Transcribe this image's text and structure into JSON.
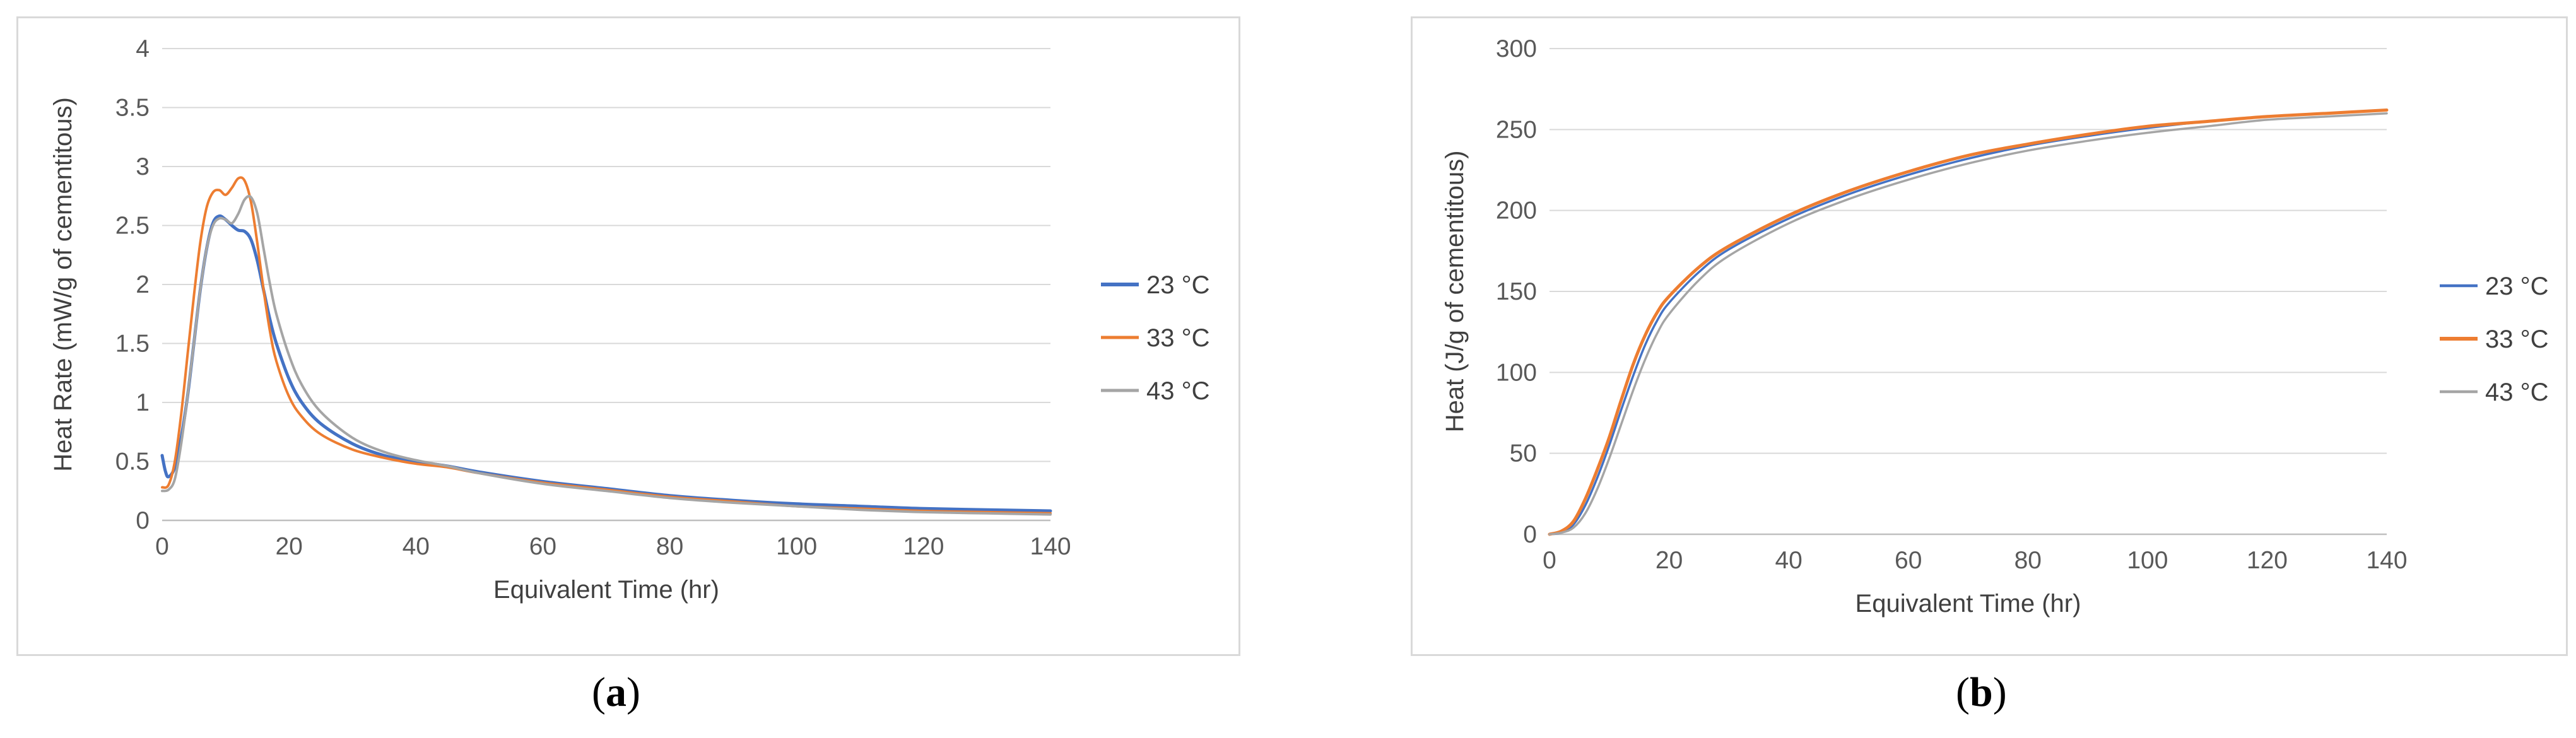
{
  "captions": [
    "(a)",
    "(b)"
  ],
  "chart_data": [
    {
      "type": "line",
      "title": "",
      "xlabel": "Equivalent Time (hr)",
      "ylabel": "Heat Rate (mW/g of cementitous)",
      "xlim": [
        0,
        140
      ],
      "ylim": [
        0,
        4
      ],
      "xticks": [
        0,
        20,
        40,
        60,
        80,
        100,
        120,
        140
      ],
      "yticks": [
        0,
        0.5,
        1,
        1.5,
        2,
        2.5,
        3,
        3.5,
        4
      ],
      "ytick_labels": [
        "0",
        "0.5",
        "1",
        "1.5",
        "2",
        "2.5",
        "3",
        "3.5",
        "4"
      ],
      "grid": "horizontal",
      "legend_position": "right",
      "series": [
        {
          "name": "23 °C",
          "color": "#4472c4",
          "points": [
            [
              0,
              0.55
            ],
            [
              0.5,
              0.42
            ],
            [
              1,
              0.37
            ],
            [
              2,
              0.45
            ],
            [
              3,
              0.7
            ],
            [
              4,
              1.05
            ],
            [
              5,
              1.5
            ],
            [
              6,
              1.95
            ],
            [
              7,
              2.3
            ],
            [
              8,
              2.52
            ],
            [
              9,
              2.58
            ],
            [
              10,
              2.55
            ],
            [
              11,
              2.5
            ],
            [
              12,
              2.46
            ],
            [
              13,
              2.45
            ],
            [
              14,
              2.38
            ],
            [
              15,
              2.2
            ],
            [
              16,
              1.95
            ],
            [
              17,
              1.7
            ],
            [
              18,
              1.5
            ],
            [
              20,
              1.2
            ],
            [
              22,
              1.0
            ],
            [
              25,
              0.82
            ],
            [
              30,
              0.65
            ],
            [
              35,
              0.55
            ],
            [
              40,
              0.5
            ],
            [
              45,
              0.46
            ],
            [
              50,
              0.41
            ],
            [
              60,
              0.33
            ],
            [
              70,
              0.27
            ],
            [
              80,
              0.21
            ],
            [
              90,
              0.17
            ],
            [
              100,
              0.14
            ],
            [
              110,
              0.12
            ],
            [
              120,
              0.1
            ],
            [
              130,
              0.09
            ],
            [
              140,
              0.08
            ]
          ]
        },
        {
          "name": "33 °C",
          "color": "#ed7d31",
          "points": [
            [
              0,
              0.28
            ],
            [
              1,
              0.3
            ],
            [
              2,
              0.5
            ],
            [
              3,
              0.9
            ],
            [
              4,
              1.4
            ],
            [
              5,
              1.9
            ],
            [
              6,
              2.35
            ],
            [
              7,
              2.65
            ],
            [
              8,
              2.78
            ],
            [
              9,
              2.8
            ],
            [
              10,
              2.76
            ],
            [
              11,
              2.82
            ],
            [
              12,
              2.9
            ],
            [
              13,
              2.88
            ],
            [
              14,
              2.7
            ],
            [
              15,
              2.35
            ],
            [
              16,
              1.95
            ],
            [
              17,
              1.6
            ],
            [
              18,
              1.35
            ],
            [
              20,
              1.05
            ],
            [
              22,
              0.88
            ],
            [
              25,
              0.73
            ],
            [
              30,
              0.6
            ],
            [
              35,
              0.53
            ],
            [
              40,
              0.48
            ],
            [
              45,
              0.45
            ],
            [
              50,
              0.4
            ],
            [
              60,
              0.32
            ],
            [
              70,
              0.26
            ],
            [
              80,
              0.2
            ],
            [
              90,
              0.16
            ],
            [
              100,
              0.12
            ],
            [
              110,
              0.1
            ],
            [
              120,
              0.08
            ],
            [
              130,
              0.07
            ],
            [
              140,
              0.06
            ]
          ]
        },
        {
          "name": "43 °C",
          "color": "#a5a5a5",
          "points": [
            [
              0,
              0.25
            ],
            [
              1,
              0.26
            ],
            [
              2,
              0.35
            ],
            [
              3,
              0.65
            ],
            [
              4,
              1.05
            ],
            [
              5,
              1.5
            ],
            [
              6,
              1.95
            ],
            [
              7,
              2.3
            ],
            [
              8,
              2.5
            ],
            [
              9,
              2.56
            ],
            [
              10,
              2.55
            ],
            [
              11,
              2.52
            ],
            [
              12,
              2.6
            ],
            [
              13,
              2.72
            ],
            [
              14,
              2.74
            ],
            [
              15,
              2.6
            ],
            [
              16,
              2.3
            ],
            [
              17,
              2.0
            ],
            [
              18,
              1.75
            ],
            [
              20,
              1.4
            ],
            [
              22,
              1.15
            ],
            [
              25,
              0.92
            ],
            [
              30,
              0.7
            ],
            [
              35,
              0.58
            ],
            [
              40,
              0.51
            ],
            [
              45,
              0.46
            ],
            [
              50,
              0.4
            ],
            [
              60,
              0.31
            ],
            [
              70,
              0.25
            ],
            [
              80,
              0.19
            ],
            [
              90,
              0.15
            ],
            [
              100,
              0.12
            ],
            [
              110,
              0.09
            ],
            [
              120,
              0.07
            ],
            [
              130,
              0.06
            ],
            [
              140,
              0.05
            ]
          ]
        }
      ]
    },
    {
      "type": "line",
      "title": "",
      "xlabel": "Equivalent Time (hr)",
      "ylabel": "Heat (J/g of cementitous)",
      "xlim": [
        0,
        140
      ],
      "ylim": [
        0,
        300
      ],
      "xticks": [
        0,
        20,
        40,
        60,
        80,
        100,
        120,
        140
      ],
      "yticks": [
        0,
        50,
        100,
        150,
        200,
        250,
        300
      ],
      "ytick_labels": [
        "0",
        "50",
        "100",
        "150",
        "200",
        "250",
        "300"
      ],
      "grid": "horizontal",
      "legend_position": "right",
      "series": [
        {
          "name": "23 °C",
          "color": "#4472c4",
          "points": [
            [
              0,
              0
            ],
            [
              2,
              1
            ],
            [
              4,
              6
            ],
            [
              6,
              18
            ],
            [
              8,
              35
            ],
            [
              10,
              55
            ],
            [
              12,
              77
            ],
            [
              14,
              98
            ],
            [
              16,
              117
            ],
            [
              18,
              132
            ],
            [
              20,
              143
            ],
            [
              25,
              162
            ],
            [
              30,
              176
            ],
            [
              40,
              195
            ],
            [
              50,
              210
            ],
            [
              60,
              222
            ],
            [
              70,
              232
            ],
            [
              80,
              240
            ],
            [
              90,
              246
            ],
            [
              100,
              251
            ],
            [
              110,
              255
            ],
            [
              120,
              258
            ],
            [
              130,
              260
            ],
            [
              140,
              262
            ]
          ]
        },
        {
          "name": "33 °C",
          "color": "#ed7d31",
          "points": [
            [
              0,
              0
            ],
            [
              2,
              2
            ],
            [
              4,
              8
            ],
            [
              6,
              22
            ],
            [
              8,
              40
            ],
            [
              10,
              60
            ],
            [
              12,
              83
            ],
            [
              14,
              105
            ],
            [
              16,
              123
            ],
            [
              18,
              137
            ],
            [
              20,
              147
            ],
            [
              25,
              165
            ],
            [
              30,
              178
            ],
            [
              40,
              197
            ],
            [
              50,
              212
            ],
            [
              60,
              224
            ],
            [
              70,
              234
            ],
            [
              80,
              241
            ],
            [
              90,
              247
            ],
            [
              100,
              252
            ],
            [
              110,
              255
            ],
            [
              120,
              258
            ],
            [
              130,
              260
            ],
            [
              140,
              262
            ]
          ]
        },
        {
          "name": "43 °C",
          "color": "#a5a5a5",
          "points": [
            [
              0,
              0
            ],
            [
              2,
              1
            ],
            [
              4,
              4
            ],
            [
              6,
              13
            ],
            [
              8,
              28
            ],
            [
              10,
              47
            ],
            [
              12,
              68
            ],
            [
              14,
              89
            ],
            [
              16,
              108
            ],
            [
              18,
              124
            ],
            [
              20,
              136
            ],
            [
              25,
              157
            ],
            [
              30,
              172
            ],
            [
              40,
              192
            ],
            [
              50,
              207
            ],
            [
              60,
              219
            ],
            [
              70,
              229
            ],
            [
              80,
              237
            ],
            [
              90,
              243
            ],
            [
              100,
              248
            ],
            [
              110,
              252
            ],
            [
              120,
              256
            ],
            [
              130,
              258
            ],
            [
              140,
              260
            ]
          ]
        }
      ]
    }
  ]
}
